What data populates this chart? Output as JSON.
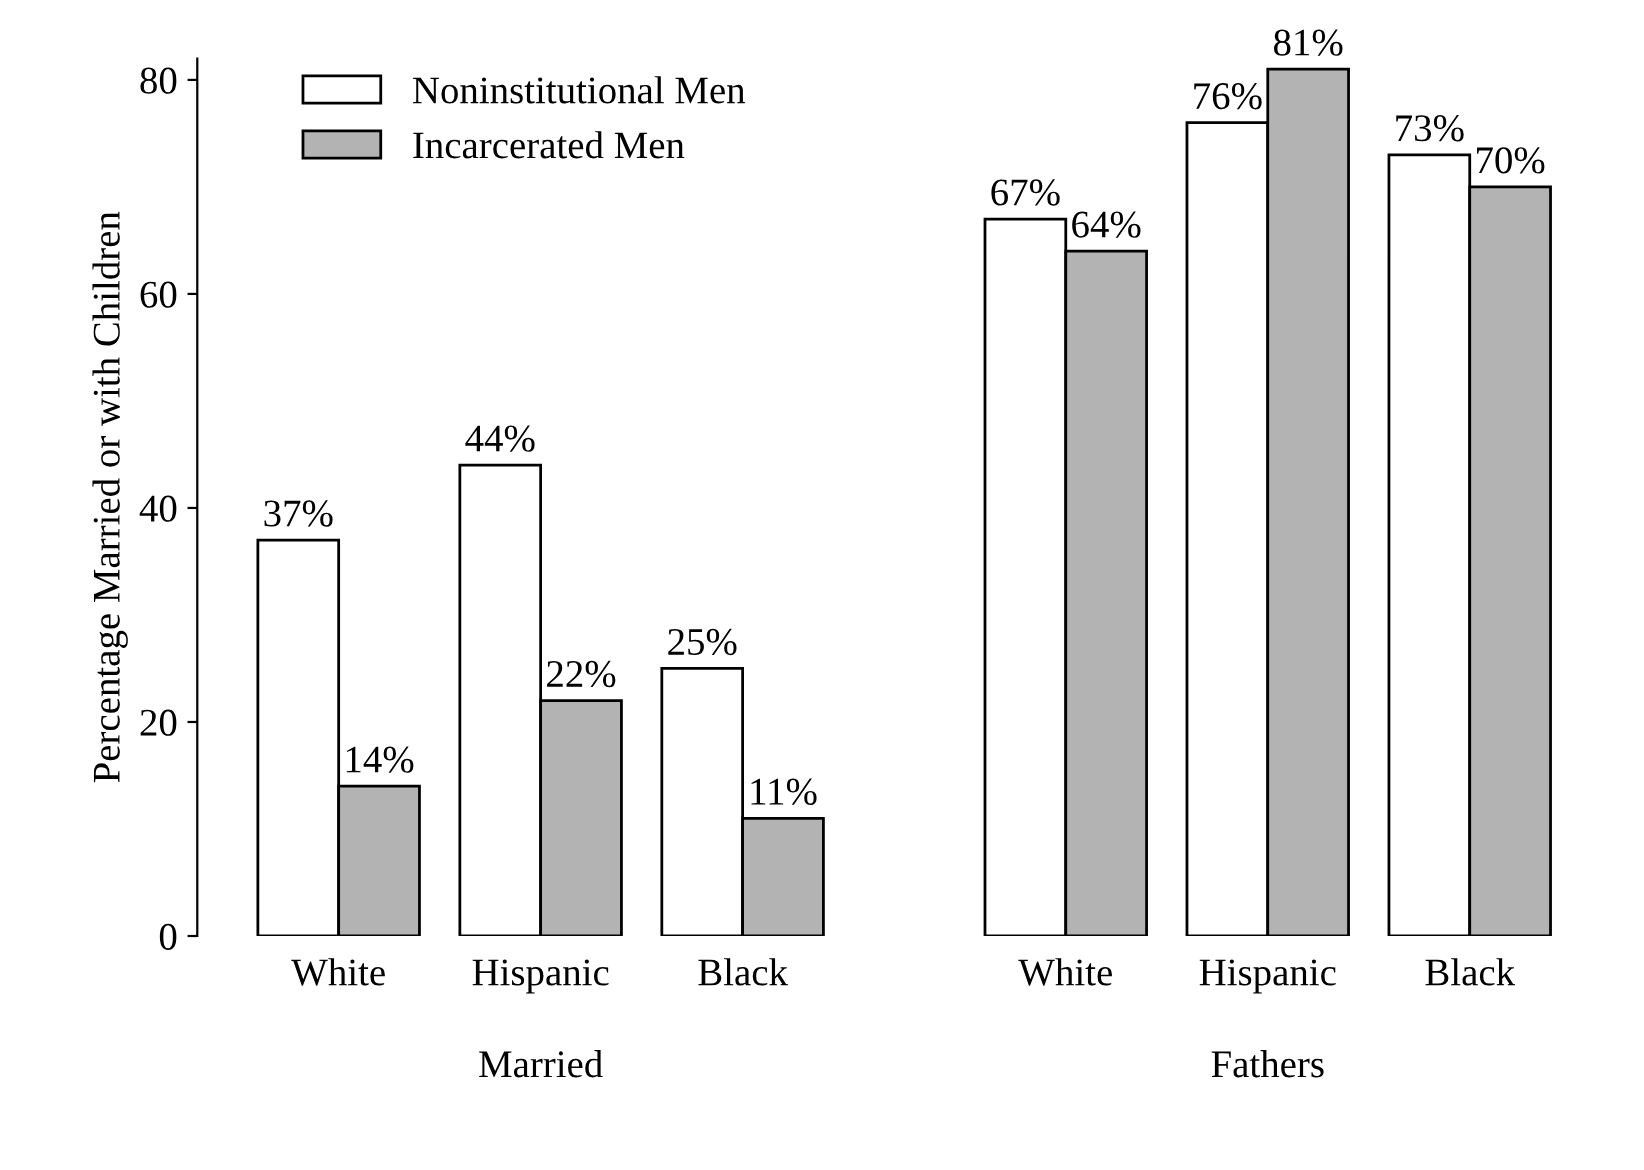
{
  "chart_data": {
    "type": "bar",
    "ylabel": "Percentage Married or with Children",
    "categories": [
      "White",
      "Hispanic",
      "Black",
      "White",
      "Hispanic",
      "Black"
    ],
    "series": [
      {
        "name": "Noninstitutional Men",
        "color": "#ffffff",
        "values": [
          37,
          44,
          25,
          67,
          76,
          73
        ],
        "value_labels": [
          "37%",
          "44%",
          "25%",
          "67%",
          "76%",
          "73%"
        ]
      },
      {
        "name": "Incarcerated Men",
        "color": "#b3b3b3",
        "values": [
          14,
          22,
          11,
          64,
          81,
          70
        ],
        "value_labels": [
          "14%",
          "22%",
          "11%",
          "64%",
          "81%",
          "70%"
        ]
      }
    ],
    "annotations": [
      "Married",
      "Fathers"
    ],
    "ylim": [
      0,
      82
    ],
    "yticks": [
      0,
      20,
      40,
      60,
      80
    ],
    "grid": false,
    "legend": "top left"
  }
}
